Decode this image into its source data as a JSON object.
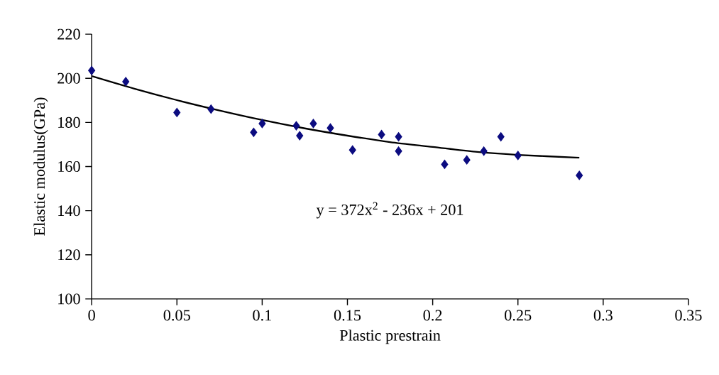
{
  "chart_data": {
    "type": "scatter",
    "xlabel": "Plastic prestrain",
    "ylabel": "Elastic modulus(GPa)",
    "xlim": [
      0,
      0.35
    ],
    "ylim": [
      100,
      220
    ],
    "xticks": [
      0,
      {
        "value": 0.05,
        "label": "0.05"
      },
      0.1,
      0.15,
      0.2,
      0.25,
      0.3,
      0.35
    ],
    "yticks": [
      100,
      120,
      140,
      160,
      180,
      200,
      220
    ],
    "annotations": [
      "y = 372x$^{2}$ - 236x + 201"
    ],
    "series": [
      {
        "marker": "diamond",
        "color": "#0c0c80",
        "x": [
          0,
          0.02,
          0.05,
          0.07,
          0.095,
          0.1,
          0.12,
          0.122,
          0.13,
          0.14,
          0.153,
          0.17,
          0.18,
          0.18,
          0.207,
          0.22,
          0.23,
          0.24,
          0.25,
          0.286
        ],
        "values": [
          203.5,
          198.5,
          184.5,
          186,
          175.5,
          179.5,
          178.5,
          174,
          179.5,
          177.5,
          167.5,
          174.5,
          173.5,
          167,
          161,
          163,
          167,
          173.5,
          165,
          156
        ]
      },
      {
        "type": "line",
        "marker": "none",
        "line_style": "solid",
        "color": "#000000",
        "x": [
          0,
          0.025,
          0.05,
          0.075,
          0.1,
          0.125,
          0.15,
          0.175,
          0.2,
          0.225,
          0.25,
          0.286
        ],
        "values": [
          201,
          195.3,
          190.1,
          185.4,
          181.1,
          177.3,
          174,
          171.1,
          168.9,
          166.7,
          165.3,
          164
        ]
      }
    ]
  }
}
